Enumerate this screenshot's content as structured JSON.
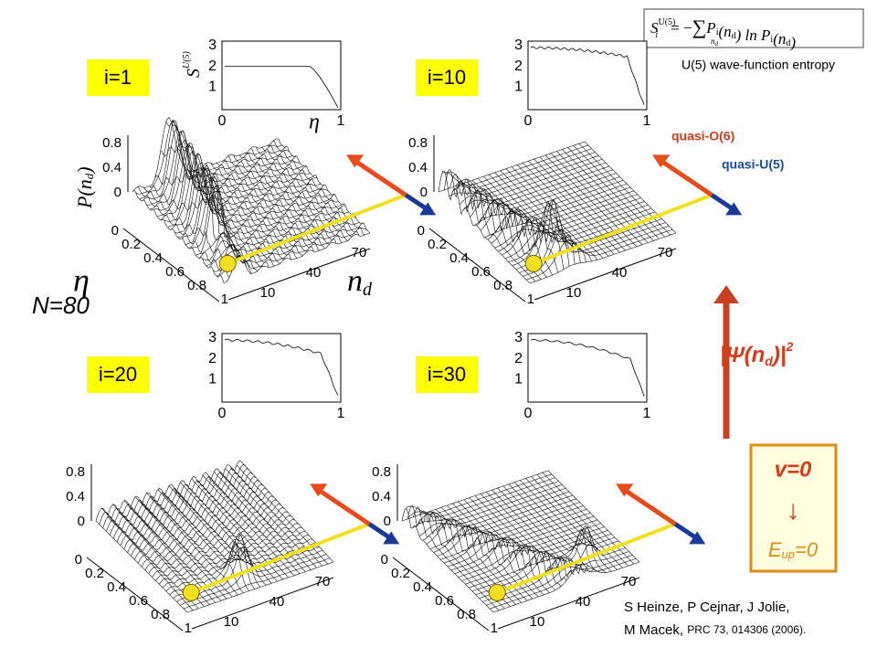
{
  "formula": {
    "symbol": "S",
    "sup": "U(5)",
    "sub": "i",
    "eq": "= −",
    "sum": "∑",
    "sum_index": "n",
    "sum_index_sub": "d",
    "rhs": [
      [
        "P",
        "i"
      ],
      [
        "(n",
        "d"
      ],
      [
        ") ln P",
        "i"
      ],
      [
        "(n",
        "d"
      ],
      [
        ")"
      ]
    ]
  },
  "formula_caption": "U(5) wave-function entropy",
  "n_label": "N=80",
  "panels": [
    {
      "label": "i=1"
    },
    {
      "label": "i=10"
    },
    {
      "label": "i=20"
    },
    {
      "label": "i=30"
    }
  ],
  "inset": {
    "yticks": [
      "3",
      "2",
      "1"
    ],
    "xticks": [
      "0",
      "1"
    ],
    "ylabel": "S",
    "ylabel_sup": "U(5)",
    "ylabel_sub": "i",
    "xlabel": "η"
  },
  "surface": {
    "pticks": [
      "0.8",
      "0.4",
      "0"
    ],
    "etaticks": [
      "0",
      "0.2",
      "0.4",
      "0.6",
      "0.8",
      "1"
    ],
    "ndticks": [
      "70",
      "40",
      "10"
    ],
    "plabel": "P(n",
    "plabel_sub": "d",
    "plabel_end": ")",
    "etalabel": "η",
    "ndlabel": "n",
    "ndlabel_sub": "d"
  },
  "arrows": {
    "o6": "quasi-O(6)",
    "u5": "quasi-U(5)"
  },
  "psi": {
    "open": "|Ψ(n",
    "sub": "d",
    "close": ")|",
    "sup": "2"
  },
  "box": {
    "line1": "v=0",
    "arrow": "↓",
    "line2": "E",
    "line2_sub": "up",
    "line2_end": "=0"
  },
  "citation": {
    "line1": "S Heinze, P Cejnar, J Jolie,",
    "line2_a": "M Macek,",
    "line2_b": "PRC 73, 014306 (2006)."
  }
}
